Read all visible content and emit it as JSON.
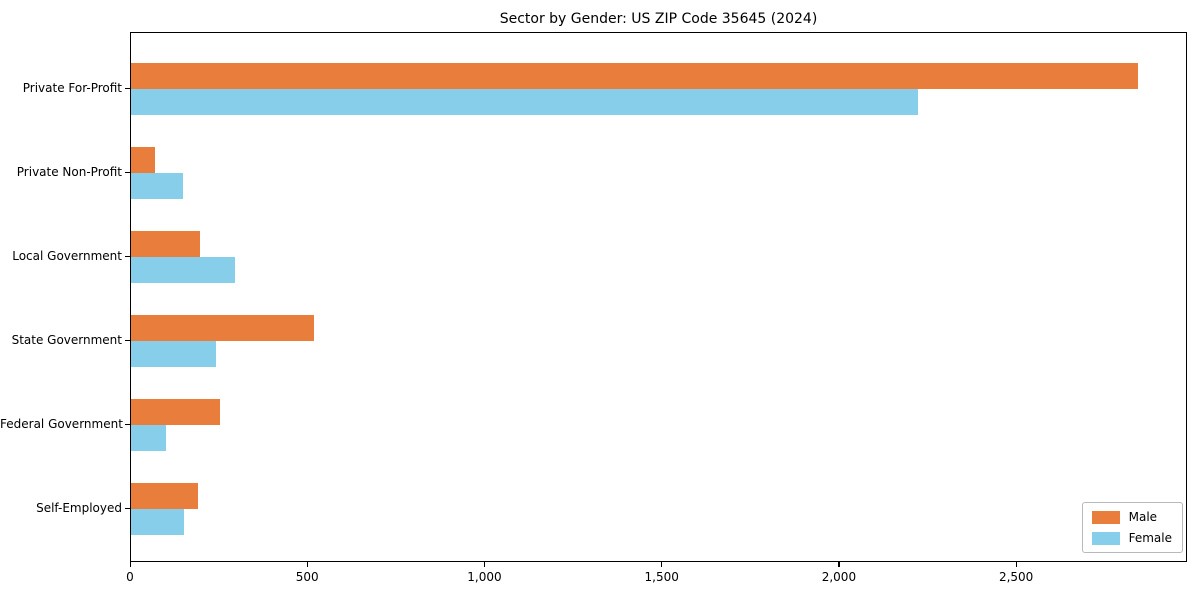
{
  "title": "Sector by Gender: US ZIP Code 35645 (2024)",
  "chart_data": {
    "type": "bar",
    "orientation": "horizontal",
    "title": "Sector by Gender: US ZIP Code 35645 (2024)",
    "xlabel": "",
    "ylabel": "",
    "categories": [
      "Private For-Profit",
      "Private Non-Profit",
      "Local Government",
      "State Government",
      "Federal Government",
      "Self-Employed"
    ],
    "series": [
      {
        "name": "Male",
        "color": "#e87d3c",
        "values": [
          2840,
          67,
          196,
          515,
          250,
          190
        ]
      },
      {
        "name": "Female",
        "color": "#87ceeb",
        "values": [
          2220,
          146,
          294,
          240,
          100,
          150
        ]
      }
    ],
    "xlim": [
      0,
      2982
    ],
    "xticks": [
      0,
      500,
      1000,
      1500,
      2000,
      2500
    ],
    "xtick_labels": [
      "0",
      "500",
      "1,000",
      "1,500",
      "2,000",
      "2,500"
    ],
    "grid": false,
    "legend_position": "lower right",
    "legend_labels": [
      "Male",
      "Female"
    ]
  }
}
